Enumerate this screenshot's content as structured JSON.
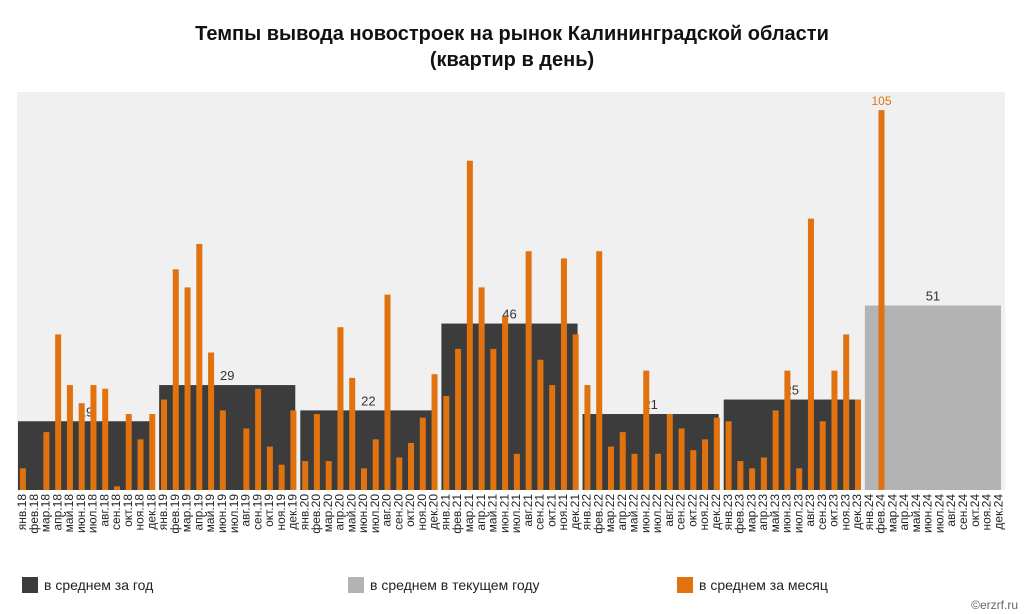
{
  "chart_data": {
    "type": "bar",
    "title": "Темпы вывода новостроек на рынок Калининградской области",
    "subtitle": "(квартир в день)",
    "categories": [
      "янв.18",
      "фев.18",
      "мар.18",
      "апр.18",
      "май.18",
      "июн.18",
      "июл.18",
      "авг.18",
      "сен.18",
      "окт.18",
      "ноя.18",
      "дек.18",
      "янв.19",
      "фев.19",
      "мар.19",
      "апр.19",
      "май.19",
      "июн.19",
      "июл.19",
      "авг.19",
      "сен.19",
      "окт.19",
      "ноя.19",
      "дек.19",
      "янв.20",
      "фев.20",
      "мар.20",
      "апр.20",
      "май.20",
      "июн.20",
      "июл.20",
      "авг.20",
      "сен.20",
      "окт.20",
      "ноя.20",
      "дек.20",
      "янв.21",
      "фев.21",
      "мар.21",
      "апр.21",
      "май.21",
      "июн.21",
      "июл.21",
      "авг.21",
      "сен.21",
      "окт.21",
      "ноя.21",
      "дек.21",
      "янв.22",
      "фев.22",
      "мар.22",
      "апр.22",
      "май.22",
      "июн.22",
      "июл.22",
      "авг.22",
      "сен.22",
      "окт.22",
      "ноя.22",
      "дек.22",
      "янв.23",
      "фев.23",
      "мар.23",
      "апр.23",
      "май.23",
      "июн.23",
      "июл.23",
      "авг.23",
      "сен.23",
      "окт.23",
      "ноя.23",
      "дек.23",
      "янв.24",
      "фев.24",
      "мар.24",
      "апр.24",
      "май.24",
      "июн.24",
      "июл.24",
      "авг.24",
      "сен.24",
      "окт.24",
      "ноя.24",
      "дек.24"
    ],
    "series": [
      {
        "name": "в среднем за месяц",
        "color": "#e0720f",
        "values": [
          6,
          0,
          16,
          43,
          29,
          24,
          29,
          28,
          1,
          21,
          14,
          21,
          25,
          61,
          56,
          68,
          38,
          22,
          0,
          17,
          28,
          12,
          7,
          22,
          8,
          21,
          8,
          45,
          31,
          6,
          14,
          54,
          9,
          13,
          20,
          32,
          26,
          39,
          91,
          56,
          39,
          48,
          10,
          66,
          36,
          29,
          64,
          43,
          29,
          66,
          12,
          16,
          10,
          33,
          10,
          21,
          17,
          11,
          14,
          20,
          19,
          8,
          6,
          9,
          22,
          33,
          6,
          75,
          19,
          33,
          43,
          25,
          0,
          105,
          null,
          null,
          null,
          null,
          null,
          null,
          null,
          null,
          null,
          null
        ],
        "value_labels": [
          null,
          null,
          null,
          null,
          null,
          null,
          null,
          null,
          null,
          null,
          null,
          null,
          null,
          null,
          null,
          null,
          null,
          null,
          null,
          null,
          null,
          null,
          null,
          null,
          null,
          null,
          null,
          null,
          null,
          null,
          null,
          null,
          null,
          null,
          null,
          null,
          null,
          null,
          null,
          null,
          null,
          null,
          null,
          null,
          null,
          null,
          null,
          null,
          null,
          null,
          null,
          null,
          null,
          null,
          null,
          null,
          null,
          null,
          null,
          null,
          null,
          null,
          null,
          null,
          null,
          null,
          null,
          null,
          null,
          null,
          null,
          null,
          null,
          "105",
          null,
          null,
          null,
          null,
          null,
          null,
          null,
          null,
          null,
          null
        ]
      }
    ],
    "year_averages": [
      {
        "name": "в среднем за год",
        "color": "#3c3c3c",
        "values": [
          19,
          29,
          22,
          46,
          21,
          25
        ]
      },
      {
        "name": "в среднем в текущем году",
        "color": "#b3b3b3",
        "values": [
          51
        ]
      }
    ],
    "months_per_year": 12,
    "ylim": [
      0,
      110
    ],
    "source": "©erzrf.ru"
  }
}
